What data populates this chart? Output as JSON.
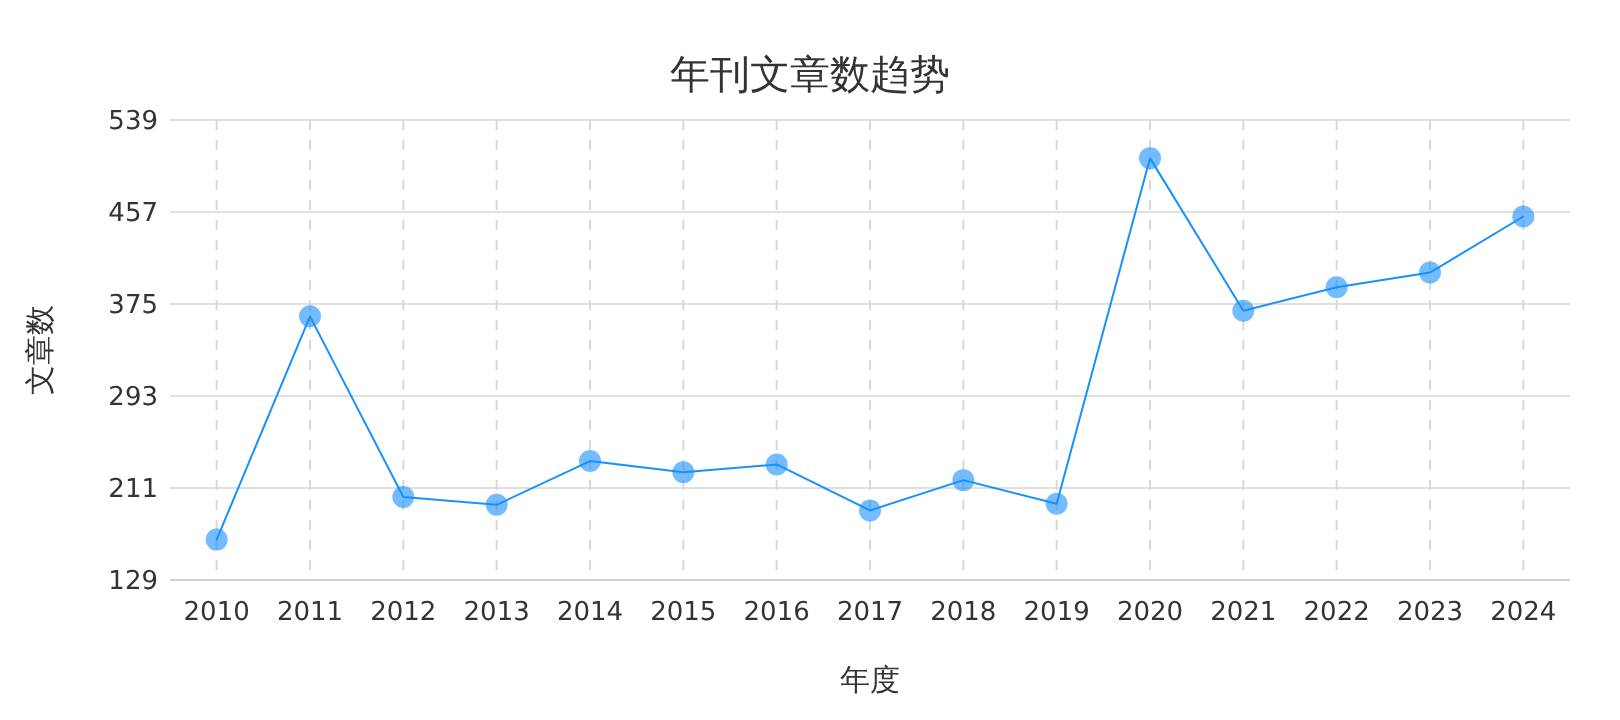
{
  "chart_data": {
    "type": "line",
    "title": "年刊文章数趋势",
    "xlabel": "年度",
    "ylabel": "文章数",
    "categories": [
      "2010",
      "2011",
      "2012",
      "2013",
      "2014",
      "2015",
      "2016",
      "2017",
      "2018",
      "2019",
      "2020",
      "2021",
      "2022",
      "2023",
      "2024"
    ],
    "series": [
      {
        "color": "#1890ff",
        "values": [
          165,
          364,
          203,
          196,
          235,
          225,
          232,
          191,
          218,
          197,
          505,
          369,
          390,
          403,
          453
        ]
      }
    ],
    "ylim": [
      129,
      539
    ],
    "yticks": [
      129,
      211,
      293,
      375,
      457,
      539
    ],
    "grid": true,
    "marker": "circle",
    "line_style": "solid"
  }
}
